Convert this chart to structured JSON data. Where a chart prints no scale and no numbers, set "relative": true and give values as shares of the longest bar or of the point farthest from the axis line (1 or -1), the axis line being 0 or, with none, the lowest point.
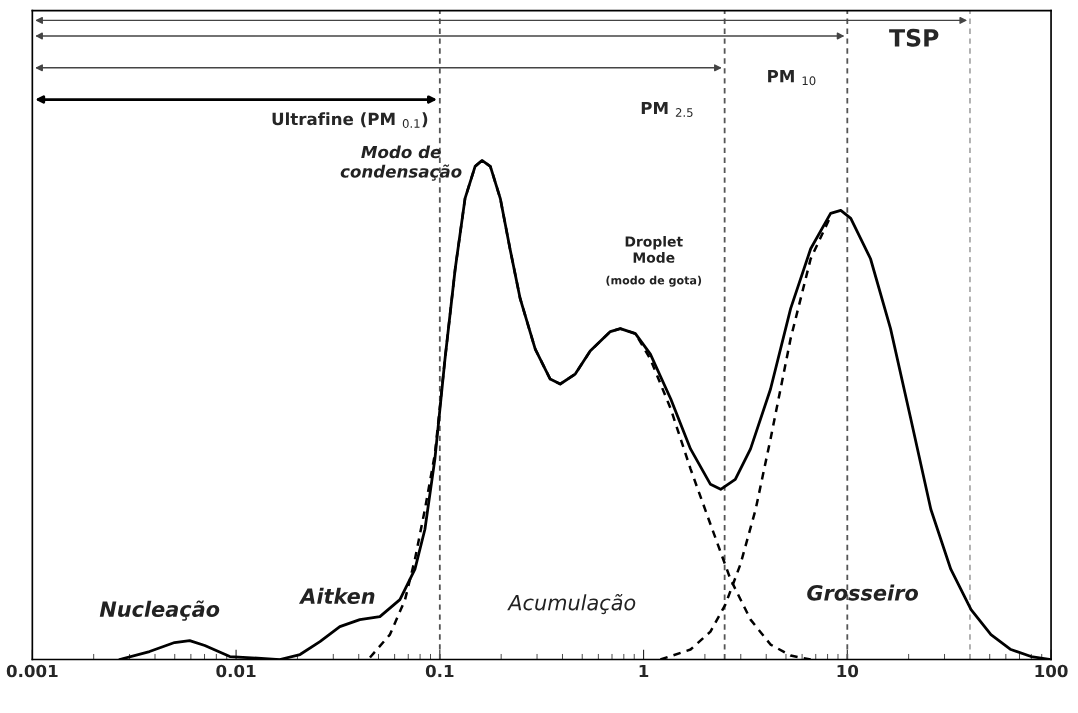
{
  "chart_data": {
    "type": "line",
    "relative": true,
    "log": "x",
    "xlim": [
      0.001,
      100
    ],
    "xticks": [
      0.001,
      0.01,
      0.1,
      1,
      10,
      100
    ],
    "tick_labels": "x",
    "grid": false,
    "legend": false,
    "marker": "none",
    "series": [
      {
        "color": "#000000",
        "line_style": "solid",
        "x": [
          0.00268,
          0.00376,
          0.00499,
          0.00592,
          0.00702,
          0.00932,
          0.0164,
          0.0206,
          0.0258,
          0.0323,
          0.0405,
          0.0508,
          0.0637,
          0.0755,
          0.0845,
          0.0946,
          0.106,
          0.119,
          0.133,
          0.149,
          0.161,
          0.177,
          0.198,
          0.221,
          0.248,
          0.294,
          0.348,
          0.39,
          0.462,
          0.547,
          0.687,
          0.769,
          0.912,
          1.08,
          1.36,
          1.7,
          2.13,
          2.39,
          2.82,
          3.35,
          4.2,
          5.27,
          6.61,
          8.28,
          9.29,
          10.4,
          13.0,
          16.3,
          20.5,
          25.7,
          32.2,
          40.5,
          50.7,
          63.5,
          79.8,
          100
        ],
        "values": [
          0,
          0.016,
          0.034,
          0.038,
          0.028,
          0.006,
          0,
          0.01,
          0.036,
          0.066,
          0.08,
          0.086,
          0.12,
          0.181,
          0.261,
          0.402,
          0.602,
          0.783,
          0.924,
          0.988,
          1,
          0.988,
          0.924,
          0.823,
          0.723,
          0.622,
          0.562,
          0.552,
          0.572,
          0.618,
          0.657,
          0.663,
          0.653,
          0.612,
          0.522,
          0.422,
          0.351,
          0.341,
          0.361,
          0.422,
          0.542,
          0.703,
          0.823,
          0.894,
          0.9,
          0.884,
          0.803,
          0.663,
          0.482,
          0.301,
          0.181,
          0.1,
          0.05,
          0.02,
          0.006,
          0
        ]
      },
      {
        "color": "#000000",
        "line_style": "dashed",
        "x": [
          0.0454,
          0.0569,
          0.0675,
          0.0755,
          0.0845,
          0.0946,
          0.106,
          0.119,
          0.133,
          0.149,
          0.161,
          0.177,
          0.198,
          0.221,
          0.248,
          0.294,
          0.348,
          0.39,
          0.462,
          0.547,
          0.687,
          0.769,
          0.912,
          1.08,
          1.36,
          1.7,
          2.13,
          2.67,
          3.35,
          4.2,
          5.27,
          6.61
        ],
        "values": [
          0.004,
          0.05,
          0.12,
          0.201,
          0.301,
          0.412,
          0.602,
          0.783,
          0.924,
          0.988,
          1,
          0.988,
          0.924,
          0.823,
          0.723,
          0.622,
          0.562,
          0.552,
          0.572,
          0.618,
          0.657,
          0.663,
          0.653,
          0.602,
          0.502,
          0.382,
          0.271,
          0.161,
          0.08,
          0.03,
          0.008,
          0
        ]
      },
      {
        "color": "#000000",
        "line_style": "dashed",
        "x": [
          1.21,
          1.7,
          2.13,
          2.52,
          2.99,
          3.55,
          4.2,
          5.27,
          6.61,
          8.28
        ],
        "values": [
          0,
          0.02,
          0.056,
          0.11,
          0.191,
          0.301,
          0.442,
          0.643,
          0.803,
          0.888
        ]
      }
    ],
    "ref_lines": [
      {
        "axis": "x",
        "value": 40,
        "label": "TSP",
        "color": "#aaaaaa",
        "line_style": "dashed"
      },
      {
        "axis": "x",
        "value": 10,
        "label": "PM $_{10}$",
        "color": "#555555",
        "line_style": "dashed"
      },
      {
        "axis": "x",
        "value": 2.5,
        "label": "PM $_{2.5}$",
        "color": "#555555",
        "line_style": "dashed"
      },
      {
        "axis": "x",
        "value": 0.1,
        "label": "Ultrafine (PM $_{0.1}$)",
        "color": "#555555",
        "line_style": "dashed"
      }
    ],
    "annotations": [
      "Modo de\ncondensação",
      "Nucleação",
      "Aitken",
      "Acumulação",
      "Grosseiro",
      "Droplet\nMode",
      "(modo de gota)"
    ]
  }
}
